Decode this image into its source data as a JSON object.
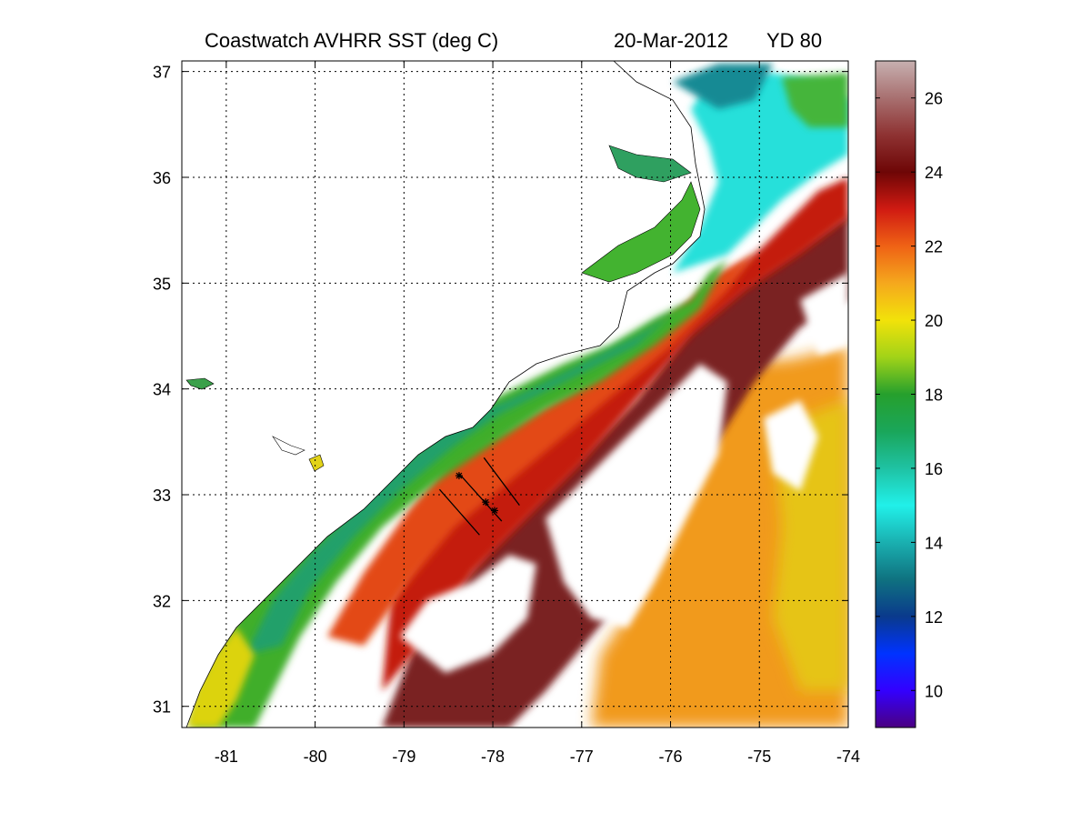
{
  "title": {
    "main": "Coastwatch   AVHRR   SST  (deg C)",
    "date": "20-Mar-2012",
    "yearday": "YD 80"
  },
  "map": {
    "lon_range": [
      -81.5,
      -74
    ],
    "lat_range": [
      30.8,
      37.1
    ],
    "lon_ticks": [
      "-81",
      "-80",
      "-79",
      "-78",
      "-77",
      "-76",
      "-75",
      "-74"
    ],
    "lat_ticks": [
      "37",
      "36",
      "35",
      "34",
      "33",
      "32",
      "31"
    ],
    "grid": true,
    "land_color": "#ffffff",
    "cloud_color": "#ffffff",
    "sections": [
      {
        "from": [
          -78.6,
          33.05
        ],
        "to": [
          -78.15,
          32.62
        ]
      },
      {
        "from": [
          -78.38,
          33.2
        ],
        "to": [
          -77.9,
          32.75
        ]
      },
      {
        "from": [
          -78.1,
          33.35
        ],
        "to": [
          -77.7,
          32.9
        ]
      }
    ],
    "stations": [
      [
        -78.38,
        33.18
      ],
      [
        -78.08,
        32.93
      ],
      [
        -77.98,
        32.85
      ]
    ]
  },
  "colorbar": {
    "label": "",
    "min": 9,
    "max": 27,
    "ticks": [
      "10",
      "12",
      "14",
      "16",
      "18",
      "20",
      "22",
      "24",
      "26"
    ],
    "colors": [
      "#4b0082",
      "#3300ff",
      "#0033ff",
      "#0a3a8c",
      "#0f7280",
      "#1ab0b0",
      "#21f0e9",
      "#1fc2a3",
      "#1aa65a",
      "#26a02d",
      "#a1d318",
      "#f2e20a",
      "#f5a81d",
      "#ef6215",
      "#d01a12",
      "#6e0606",
      "#8e3232",
      "#a87070",
      "#c7b0b0"
    ]
  }
}
